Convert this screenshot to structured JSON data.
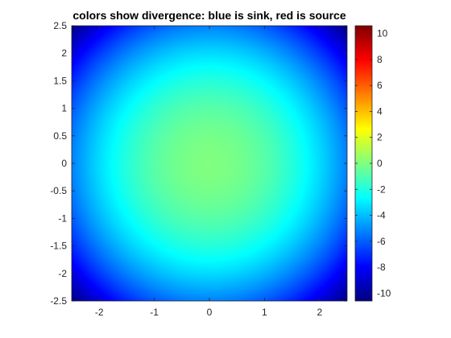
{
  "chart_data": {
    "type": "heatmap",
    "title": "colors show divergence: blue is sink, red is source",
    "xlabel": "",
    "ylabel": "",
    "xlim": [
      -2.5,
      2.5
    ],
    "ylim": [
      -2.5,
      2.5
    ],
    "x_ticks": [
      "-2",
      "-1",
      "0",
      "1",
      "2"
    ],
    "x_tick_values": [
      -2,
      -1,
      0,
      1,
      2
    ],
    "y_ticks": [
      "2.5",
      "2",
      "1.5",
      "1",
      "0.5",
      "0",
      "-0.5",
      "-1",
      "-1.5",
      "-2",
      "-2.5"
    ],
    "y_tick_values": [
      2.5,
      2,
      1.5,
      1,
      0.5,
      0,
      -0.5,
      -1,
      -1.5,
      -2,
      -2.5
    ],
    "field": {
      "description_of_values": "divergence; maximum at center",
      "center": [
        0,
        0
      ],
      "center_value": 0,
      "edge_mid_value": -5.3,
      "corner_value": -10.6
    },
    "colorbar": {
      "colormap": "jet",
      "clim": [
        -10.6,
        10.6
      ],
      "ticks": [
        "10",
        "8",
        "6",
        "4",
        "2",
        "0",
        "-2",
        "-4",
        "-6",
        "-8",
        "-10"
      ],
      "tick_values": [
        10,
        8,
        6,
        4,
        2,
        0,
        -2,
        -4,
        -6,
        -8,
        -10
      ]
    },
    "grid": false,
    "legend": "none"
  }
}
